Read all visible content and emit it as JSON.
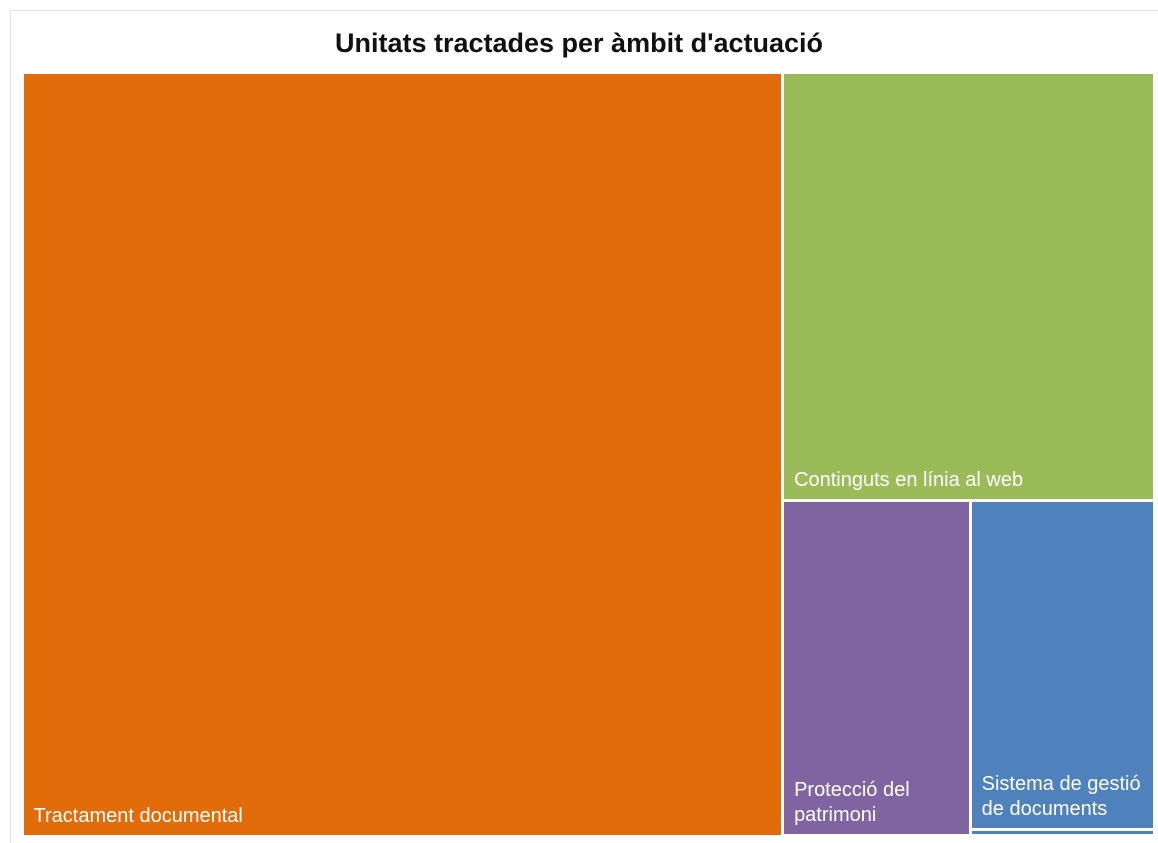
{
  "chart_data": {
    "type": "treemap",
    "title": "Unitats tractades per àmbit d'actuació",
    "categories": [
      "Tractament documental",
      "Continguts en línia al web",
      "Protecció del patrimoni",
      "Sistema de gestió de documents",
      null
    ],
    "values": [
      572,
      157,
      62,
      60,
      1.1
    ],
    "colors": [
      "#e36c0a",
      "#9bbb59",
      "#8064a2",
      "#4f81bd",
      "#4f81bd"
    ]
  }
}
